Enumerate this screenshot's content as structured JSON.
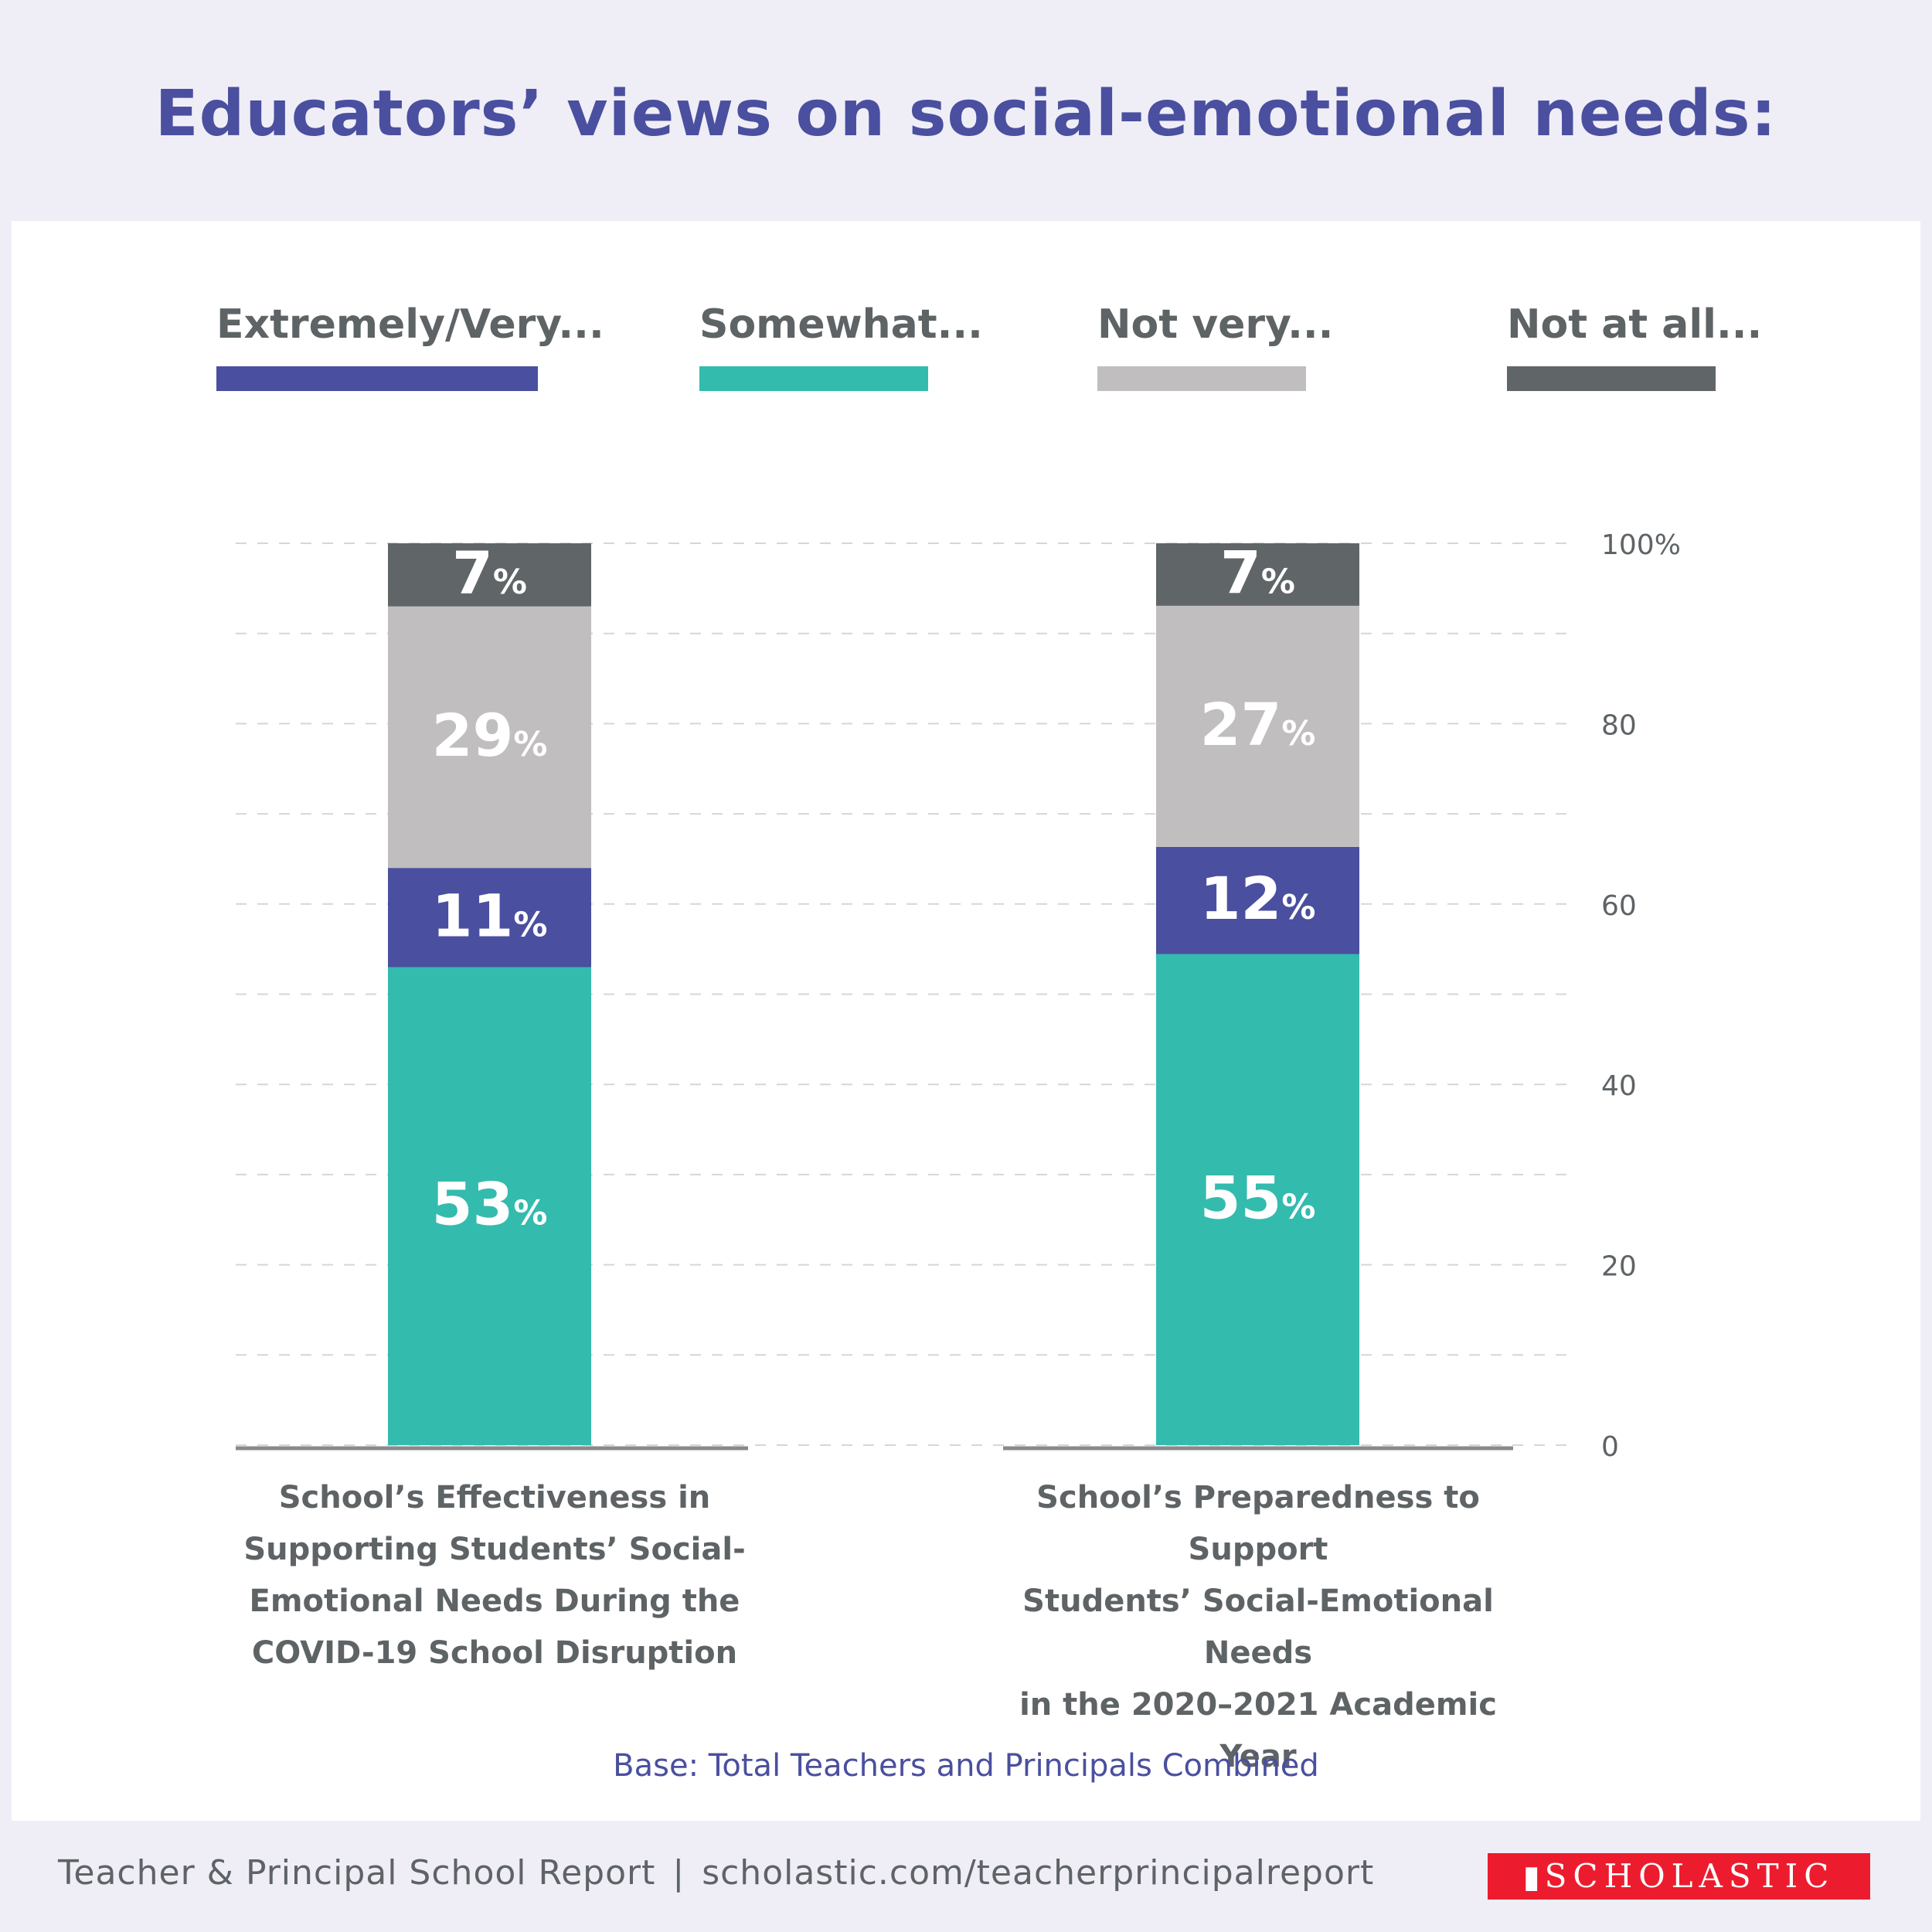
{
  "title": "Educators’ views on social-emotional needs:",
  "base_note": "Base: Total Teachers and Principals Combined",
  "footer": {
    "report": "Teacher & Principal School Report",
    "separator": "|",
    "url": "scholastic.com/teacherprincipalreport",
    "logo_text": "SCHOLASTIC",
    "logo_icon": "open-book-icon"
  },
  "colors": {
    "title": "#4a4f9f",
    "extremely_very": "#4a4f9f",
    "somewhat": "#33bbae",
    "not_very": "#c0bebf",
    "not_at_all": "#606568",
    "brand_red": "#ec1c2e",
    "text_gray": "#5e6366"
  },
  "chart_data": {
    "type": "bar",
    "stacked": true,
    "title": "Educators’ views on social-emotional needs:",
    "xlabel": "",
    "ylabel": "",
    "ylim": [
      0,
      100
    ],
    "yticks": [
      0,
      20,
      40,
      60,
      80,
      100
    ],
    "ytick_labels": [
      "0",
      "20",
      "40",
      "60",
      "80",
      "100%"
    ],
    "grid": true,
    "legend_position": "top",
    "categories": [
      "School’s Effectiveness in Supporting Students’ Social-Emotional Needs During the COVID-19 School Disruption",
      "School’s Preparedness to Support Students’ Social-Emotional Needs in the 2020–2021 Academic Year"
    ],
    "category_lines": [
      [
        "School’s Effectiveness in",
        "Supporting Students’ Social-",
        "Emotional Needs During the",
        "COVID-19 School Disruption"
      ],
      [
        "School’s Preparedness to Support",
        "Students’ Social-Emotional Needs",
        "in the 2020–2021 Academic Year"
      ]
    ],
    "stack_order_bottom_to_top": [
      "Somewhat...",
      "Extremely/Very...",
      "Not very...",
      "Not at all..."
    ],
    "series": [
      {
        "name": "Extremely/Very...",
        "color": "#4a4f9f",
        "values": [
          11,
          12
        ]
      },
      {
        "name": "Somewhat...",
        "color": "#33bbae",
        "values": [
          53,
          55
        ]
      },
      {
        "name": "Not very...",
        "color": "#c0bebf",
        "values": [
          29,
          27
        ]
      },
      {
        "name": "Not at all...",
        "color": "#606568",
        "values": [
          7,
          7
        ]
      }
    ],
    "data_label_suffix": "%"
  }
}
